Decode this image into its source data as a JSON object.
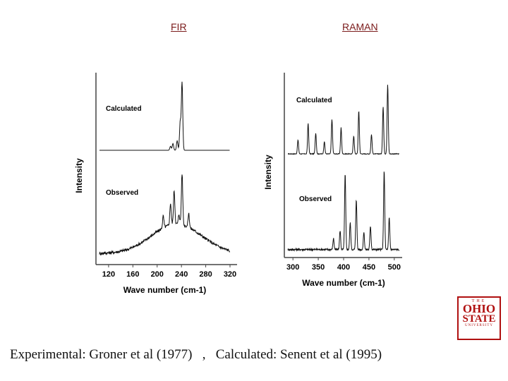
{
  "headers": {
    "left": "FIR",
    "right": "RAMAN"
  },
  "caption": "Experimental: Groner et al (1977)   ,   Calculated: Senent et al (1995)",
  "logo": {
    "line1": "THE",
    "line2": "OHIO",
    "line3": "STATE",
    "line4": "UNIVERSITY"
  },
  "colors": {
    "logo": "#b01010",
    "header": "#7a1a1a"
  },
  "chart_data": [
    {
      "type": "line",
      "title": "FIR",
      "xlabel": "Wave number (cm-1)",
      "ylabel": "Intensity",
      "xlim": [
        105,
        320
      ],
      "xticks": [
        120,
        160,
        200,
        240,
        280,
        320
      ],
      "series": [
        {
          "name": "Calculated",
          "peaks": [
            [
              222,
              6
            ],
            [
              226,
              10
            ],
            [
              233,
              14
            ],
            [
              238,
              42
            ],
            [
              241,
              100
            ]
          ],
          "baseline": 0.0,
          "noise": 0.0
        },
        {
          "name": "Observed",
          "peaks": [
            [
              210,
              12
            ],
            [
              222,
              22
            ],
            [
              228,
              34
            ],
            [
              236,
              10
            ],
            [
              241,
              52
            ],
            [
              252,
              14
            ]
          ],
          "broad": {
            "center": 232,
            "width": 58,
            "height": 30
          },
          "baseline": 4.0,
          "noise": 1.5
        }
      ]
    },
    {
      "type": "line",
      "title": "RAMAN",
      "xlabel": "Wave number (cm-1)",
      "ylabel": "Intensity",
      "xlim": [
        290,
        510
      ],
      "xticks": [
        300,
        350,
        400,
        450,
        500
      ],
      "series": [
        {
          "name": "Calculated",
          "peaks": [
            [
              310,
              20
            ],
            [
              330,
              44
            ],
            [
              345,
              30
            ],
            [
              362,
              18
            ],
            [
              377,
              50
            ],
            [
              395,
              38
            ],
            [
              420,
              26
            ],
            [
              430,
              62
            ],
            [
              455,
              28
            ],
            [
              478,
              68
            ],
            [
              487,
              100
            ]
          ],
          "baseline": 5.0,
          "noise": 0.5
        },
        {
          "name": "Observed",
          "peaks": [
            [
              380,
              14
            ],
            [
              393,
              24
            ],
            [
              403,
              96
            ],
            [
              413,
              34
            ],
            [
              425,
              64
            ],
            [
              440,
              22
            ],
            [
              453,
              30
            ],
            [
              480,
              100
            ],
            [
              490,
              40
            ]
          ],
          "baseline": 3.0,
          "noise": 1.2
        }
      ]
    }
  ]
}
